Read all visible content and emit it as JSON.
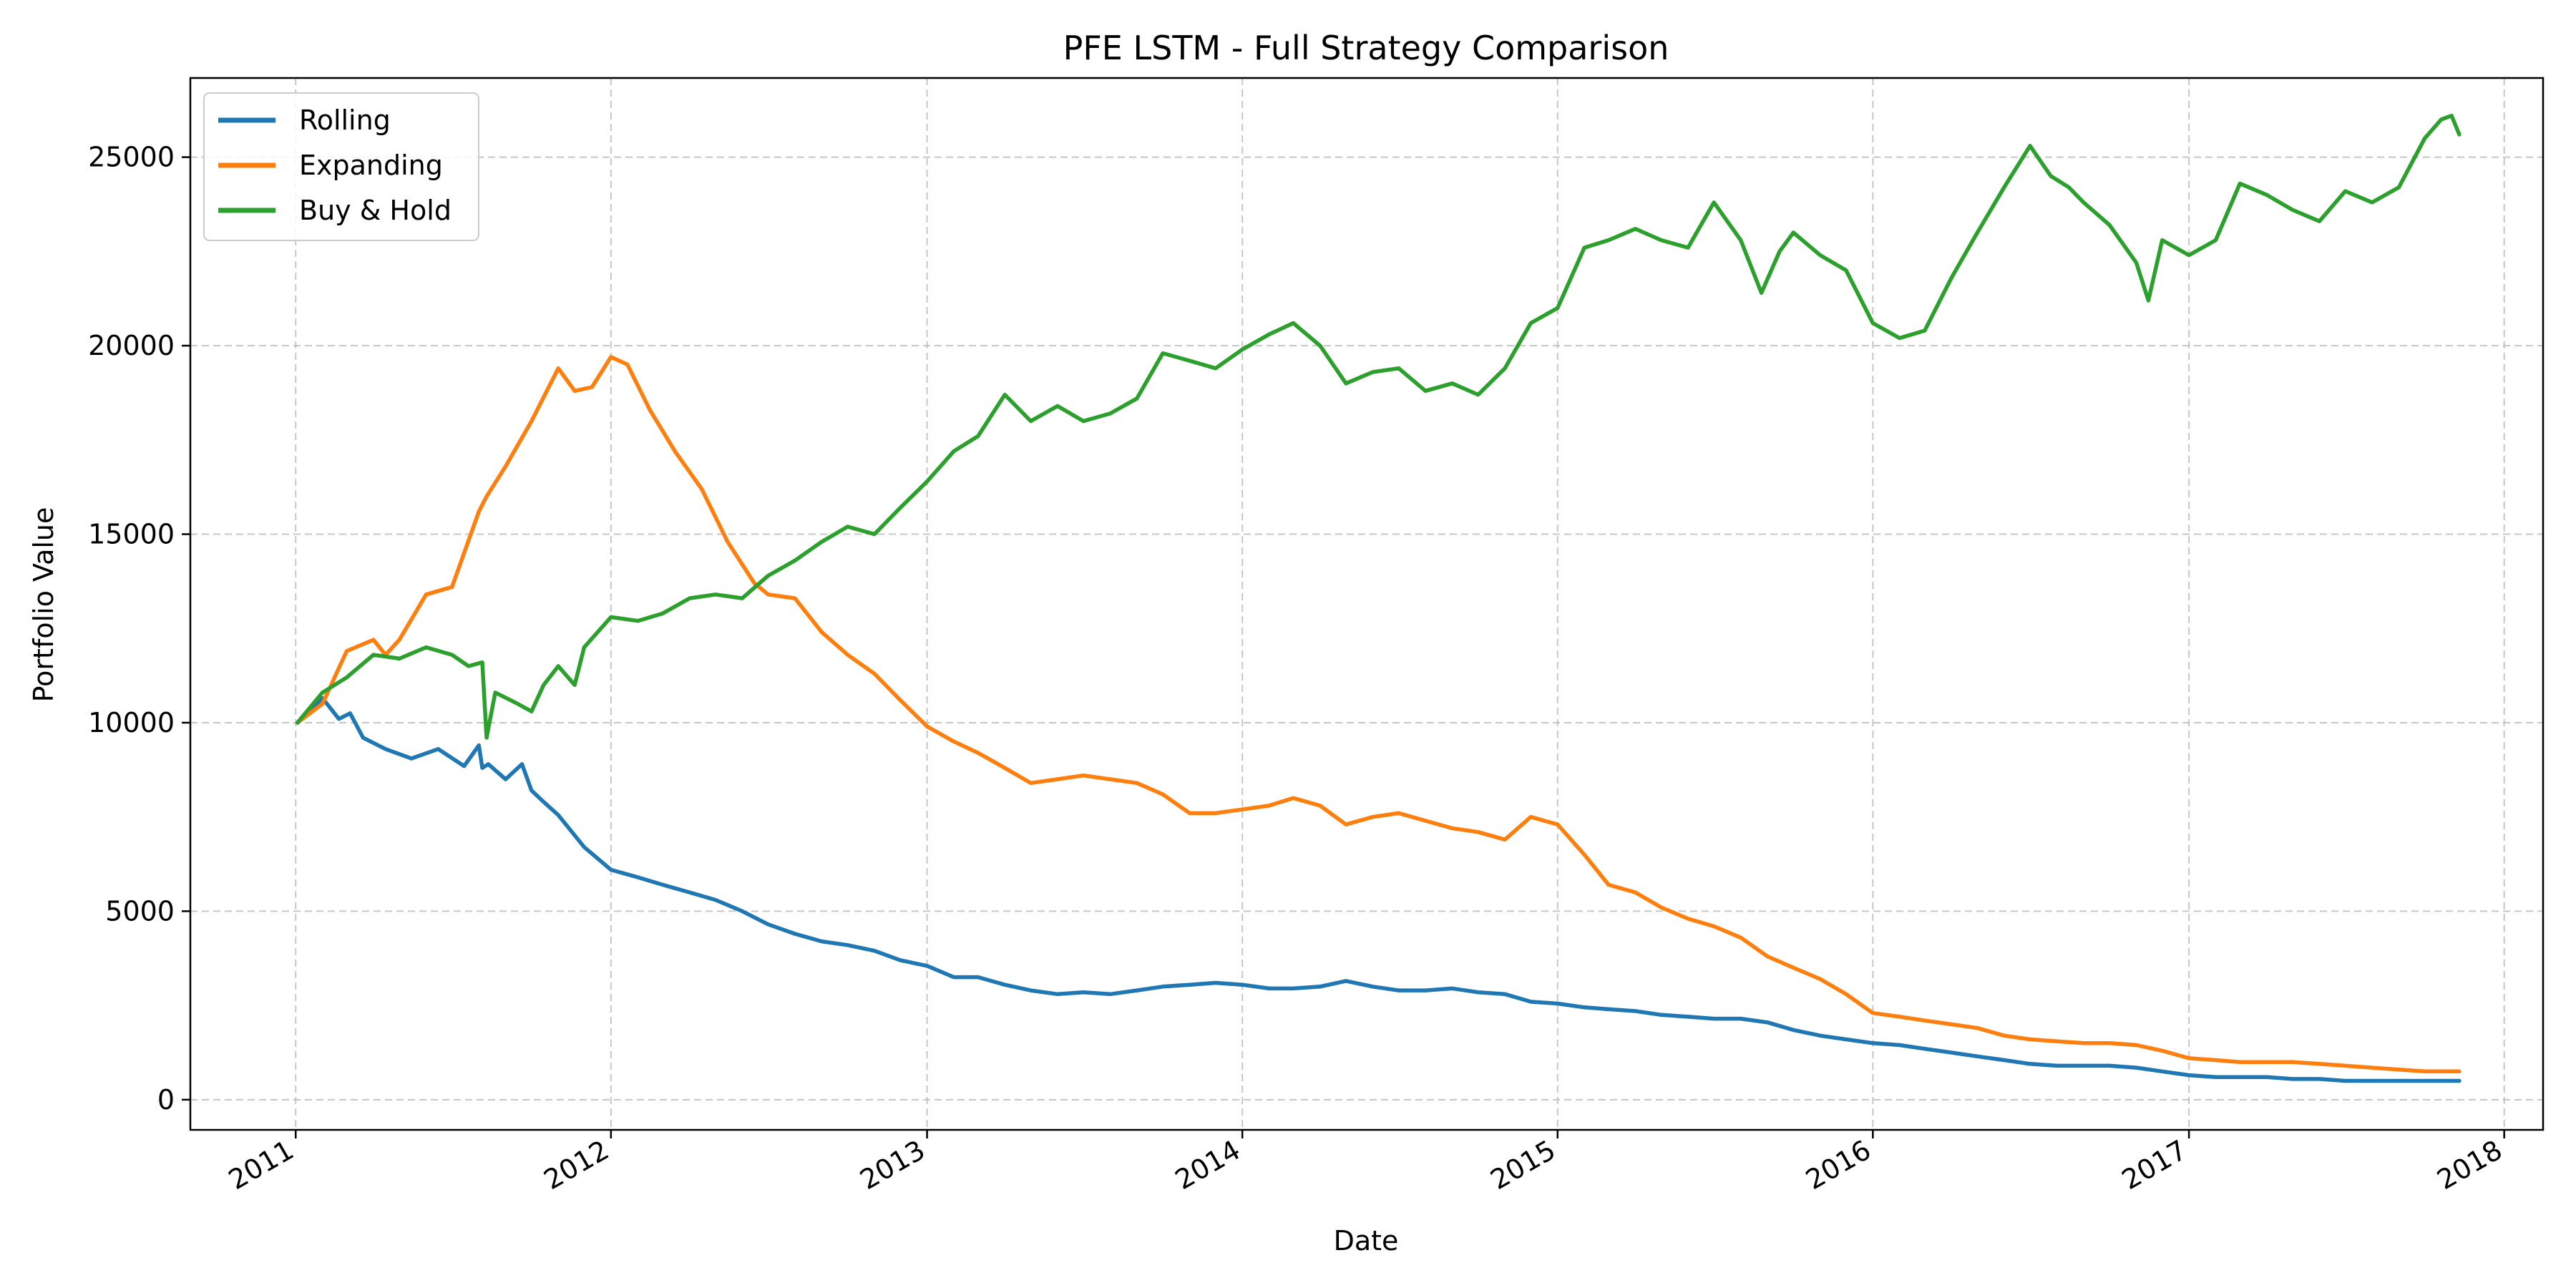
{
  "chart_data": {
    "type": "line",
    "title": "PFE LSTM - Full Strategy Comparison",
    "xlabel": "Date",
    "ylabel": "Portfolio Value",
    "xlim": [
      "2010-09-01",
      "2018-02-15"
    ],
    "ylim": [
      -800,
      27100
    ],
    "x_ticks": [
      "2011",
      "2012",
      "2013",
      "2014",
      "2015",
      "2016",
      "2017",
      "2018"
    ],
    "y_ticks": [
      0,
      5000,
      10000,
      15000,
      20000,
      25000
    ],
    "grid": true,
    "legend_position": "top-left",
    "series": [
      {
        "name": "Rolling",
        "color": "#1f77b4",
        "x": [
          "2011-01-03",
          "2011-02-01",
          "2011-02-20",
          "2011-03-05",
          "2011-03-20",
          "2011-04-15",
          "2011-05-15",
          "2011-06-15",
          "2011-07-15",
          "2011-08-01",
          "2011-08-05",
          "2011-08-12",
          "2011-09-01",
          "2011-09-20",
          "2011-10-01",
          "2011-10-15",
          "2011-11-01",
          "2011-12-01",
          "2012-01-01",
          "2012-02-01",
          "2012-03-01",
          "2012-04-01",
          "2012-05-01",
          "2012-06-01",
          "2012-07-01",
          "2012-08-01",
          "2012-09-01",
          "2012-10-01",
          "2012-11-01",
          "2012-12-01",
          "2013-01-01",
          "2013-02-01",
          "2013-03-01",
          "2013-04-01",
          "2013-05-01",
          "2013-06-01",
          "2013-07-01",
          "2013-08-01",
          "2013-09-01",
          "2013-10-01",
          "2013-11-01",
          "2013-12-01",
          "2014-01-01",
          "2014-02-01",
          "2014-03-01",
          "2014-04-01",
          "2014-05-01",
          "2014-06-01",
          "2014-07-01",
          "2014-08-01",
          "2014-09-01",
          "2014-10-01",
          "2014-11-01",
          "2014-12-01",
          "2015-01-01",
          "2015-02-01",
          "2015-03-01",
          "2015-04-01",
          "2015-05-01",
          "2015-06-01",
          "2015-07-01",
          "2015-08-01",
          "2015-09-01",
          "2015-10-01",
          "2015-11-01",
          "2015-12-01",
          "2016-01-01",
          "2016-02-01",
          "2016-03-01",
          "2016-04-01",
          "2016-05-01",
          "2016-06-01",
          "2016-07-01",
          "2016-08-01",
          "2016-09-01",
          "2016-10-01",
          "2016-11-01",
          "2016-12-01",
          "2017-01-01",
          "2017-02-01",
          "2017-03-01",
          "2017-04-01",
          "2017-05-01",
          "2017-06-01",
          "2017-07-01",
          "2017-08-01",
          "2017-09-01",
          "2017-10-01",
          "2017-11-10"
        ],
        "values": [
          10000,
          10650,
          10100,
          10250,
          9600,
          9300,
          9050,
          9300,
          8850,
          9400,
          8800,
          8900,
          8500,
          8900,
          8200,
          7900,
          7550,
          6700,
          6100,
          5900,
          5700,
          5500,
          5300,
          5000,
          4650,
          4400,
          4200,
          4100,
          3950,
          3700,
          3550,
          3250,
          3250,
          3050,
          2900,
          2800,
          2850,
          2800,
          2900,
          3000,
          3050,
          3100,
          3050,
          2950,
          2950,
          3000,
          3150,
          3000,
          2900,
          2900,
          2950,
          2850,
          2800,
          2600,
          2550,
          2450,
          2400,
          2350,
          2250,
          2200,
          2150,
          2150,
          2050,
          1850,
          1700,
          1600,
          1500,
          1450,
          1350,
          1250,
          1150,
          1050,
          950,
          900,
          900,
          900,
          850,
          750,
          650,
          600,
          600,
          600,
          550,
          550,
          500,
          500,
          500,
          500,
          500
        ]
      },
      {
        "name": "Expanding",
        "color": "#ff7f0e",
        "x": [
          "2011-01-03",
          "2011-02-01",
          "2011-03-01",
          "2011-04-01",
          "2011-04-15",
          "2011-05-01",
          "2011-06-01",
          "2011-07-01",
          "2011-08-01",
          "2011-08-10",
          "2011-09-01",
          "2011-10-01",
          "2011-11-01",
          "2011-11-20",
          "2011-12-10",
          "2012-01-01",
          "2012-01-20",
          "2012-02-15",
          "2012-03-15",
          "2012-04-15",
          "2012-05-15",
          "2012-06-15",
          "2012-07-01",
          "2012-08-01",
          "2012-09-01",
          "2012-10-01",
          "2012-11-01",
          "2012-12-01",
          "2013-01-01",
          "2013-02-01",
          "2013-03-01",
          "2013-04-01",
          "2013-05-01",
          "2013-06-01",
          "2013-07-01",
          "2013-08-01",
          "2013-09-01",
          "2013-10-01",
          "2013-11-01",
          "2013-12-01",
          "2014-01-01",
          "2014-02-01",
          "2014-03-01",
          "2014-04-01",
          "2014-05-01",
          "2014-06-01",
          "2014-07-01",
          "2014-08-01",
          "2014-09-01",
          "2014-10-01",
          "2014-11-01",
          "2014-12-01",
          "2015-01-01",
          "2015-02-01",
          "2015-03-01",
          "2015-04-01",
          "2015-05-01",
          "2015-06-01",
          "2015-07-01",
          "2015-08-01",
          "2015-09-01",
          "2015-10-01",
          "2015-11-01",
          "2015-12-01",
          "2016-01-01",
          "2016-02-01",
          "2016-03-01",
          "2016-04-01",
          "2016-05-01",
          "2016-06-01",
          "2016-07-01",
          "2016-08-01",
          "2016-09-01",
          "2016-10-01",
          "2016-11-01",
          "2016-12-01",
          "2017-01-01",
          "2017-02-01",
          "2017-03-01",
          "2017-04-01",
          "2017-05-01",
          "2017-06-01",
          "2017-07-01",
          "2017-08-01",
          "2017-09-01",
          "2017-10-01",
          "2017-11-10"
        ],
        "values": [
          10000,
          10500,
          11900,
          12200,
          11800,
          12200,
          13400,
          13600,
          15600,
          16000,
          16800,
          18000,
          19400,
          18800,
          18900,
          19700,
          19500,
          18300,
          17200,
          16200,
          14800,
          13700,
          13400,
          13300,
          12400,
          11800,
          11300,
          10600,
          9900,
          9500,
          9200,
          8800,
          8400,
          8500,
          8600,
          8500,
          8400,
          8100,
          7600,
          7600,
          7700,
          7800,
          8000,
          7800,
          7300,
          7500,
          7600,
          7400,
          7200,
          7100,
          6900,
          7500,
          7300,
          6500,
          5700,
          5500,
          5100,
          4800,
          4600,
          4300,
          3800,
          3500,
          3200,
          2800,
          2300,
          2200,
          2100,
          2000,
          1900,
          1700,
          1600,
          1550,
          1500,
          1500,
          1450,
          1300,
          1100,
          1050,
          1000,
          1000,
          1000,
          950,
          900,
          850,
          800,
          750,
          750
        ]
      },
      {
        "name": "Buy & Hold",
        "color": "#2ca02c",
        "x": [
          "2011-01-03",
          "2011-02-01",
          "2011-03-01",
          "2011-04-01",
          "2011-05-01",
          "2011-06-01",
          "2011-07-01",
          "2011-07-20",
          "2011-08-05",
          "2011-08-10",
          "2011-08-20",
          "2011-09-15",
          "2011-10-01",
          "2011-10-15",
          "2011-11-01",
          "2011-11-20",
          "2011-12-01",
          "2012-01-01",
          "2012-02-01",
          "2012-03-01",
          "2012-04-01",
          "2012-05-01",
          "2012-06-01",
          "2012-07-01",
          "2012-08-01",
          "2012-09-01",
          "2012-10-01",
          "2012-11-01",
          "2012-12-01",
          "2013-01-01",
          "2013-02-01",
          "2013-03-01",
          "2013-04-01",
          "2013-05-01",
          "2013-06-01",
          "2013-07-01",
          "2013-08-01",
          "2013-09-01",
          "2013-10-01",
          "2013-11-01",
          "2013-12-01",
          "2014-01-01",
          "2014-02-01",
          "2014-03-01",
          "2014-04-01",
          "2014-05-01",
          "2014-06-01",
          "2014-07-01",
          "2014-08-01",
          "2014-09-01",
          "2014-10-01",
          "2014-11-01",
          "2014-12-01",
          "2015-01-01",
          "2015-02-01",
          "2015-03-01",
          "2015-04-01",
          "2015-05-01",
          "2015-06-01",
          "2015-07-01",
          "2015-08-01",
          "2015-08-25",
          "2015-09-15",
          "2015-10-01",
          "2015-11-01",
          "2015-12-01",
          "2016-01-01",
          "2016-02-01",
          "2016-03-01",
          "2016-04-01",
          "2016-05-01",
          "2016-06-01",
          "2016-07-01",
          "2016-07-25",
          "2016-08-15",
          "2016-09-01",
          "2016-10-01",
          "2016-11-01",
          "2016-11-15",
          "2016-12-01",
          "2017-01-01",
          "2017-02-01",
          "2017-03-01",
          "2017-04-01",
          "2017-05-01",
          "2017-06-01",
          "2017-07-01",
          "2017-08-01",
          "2017-09-01",
          "2017-10-01",
          "2017-10-20",
          "2017-11-01",
          "2017-11-10"
        ],
        "values": [
          10000,
          10800,
          11200,
          11800,
          11700,
          12000,
          11800,
          11500,
          11600,
          9600,
          10800,
          10500,
          10300,
          11000,
          11500,
          11000,
          12000,
          12800,
          12700,
          12900,
          13300,
          13400,
          13300,
          13900,
          14300,
          14800,
          15200,
          15000,
          15700,
          16400,
          17200,
          17600,
          18700,
          18000,
          18400,
          18000,
          18200,
          18600,
          19800,
          19600,
          19400,
          19900,
          20300,
          20600,
          20000,
          19000,
          19300,
          19400,
          18800,
          19000,
          18700,
          19400,
          20600,
          21000,
          22600,
          22800,
          23100,
          22800,
          22600,
          23800,
          22800,
          21400,
          22500,
          23000,
          22400,
          22000,
          20600,
          20200,
          20400,
          21800,
          23000,
          24200,
          25300,
          24500,
          24200,
          23800,
          23200,
          22200,
          21200,
          22800,
          22400,
          22800,
          24300,
          24000,
          23600,
          23300,
          24100,
          23800,
          24200,
          25500,
          26000,
          26100,
          25600
        ]
      }
    ]
  }
}
